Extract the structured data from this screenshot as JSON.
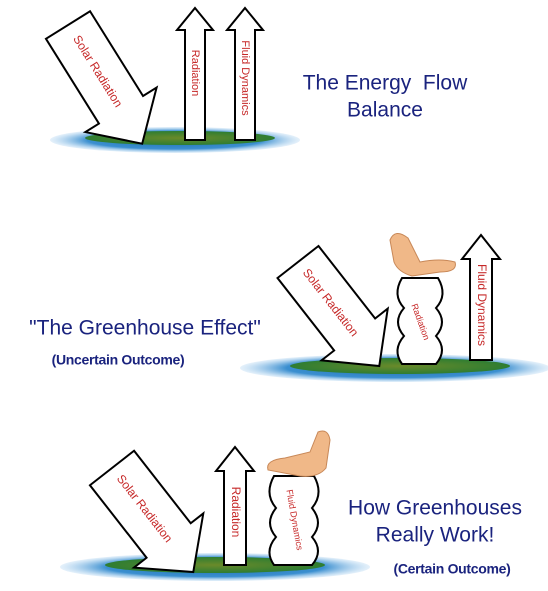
{
  "panels": [
    {
      "arrows": [
        "Solar Radiation",
        "Radiation",
        "Fluid Dynamics"
      ],
      "title": [
        "The Energy  Flow",
        "Balance"
      ]
    },
    {
      "arrows": [
        "Solar Radiation",
        "Radiation",
        "Fluid Dynamics"
      ],
      "title": [
        "\"The Greenhouse Effect\""
      ],
      "subtitle": "(Uncertain Outcome)"
    },
    {
      "arrows": [
        "Solar Radiation",
        "Radiation",
        "Fluid Dynamics"
      ],
      "title": [
        "How Greenhouses",
        "Really Work!"
      ],
      "subtitle": "(Certain Outcome)"
    }
  ]
}
